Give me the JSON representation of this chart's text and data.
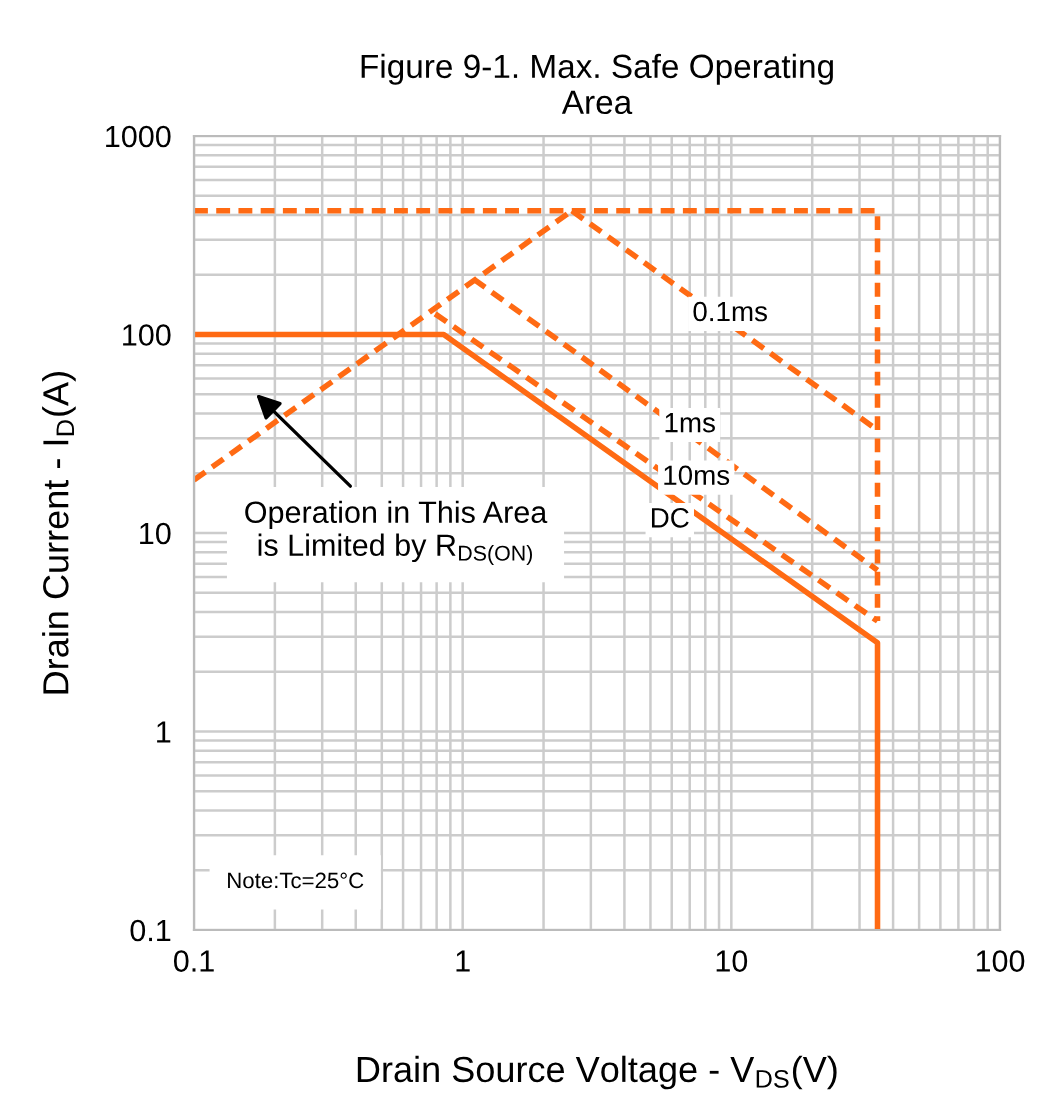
{
  "chart_data": {
    "type": "line",
    "title": "Figure 9-1. Max. Safe Operating\nArea",
    "xlabel": "Drain Source Voltage - V$_{DS}$(V)",
    "ylabel": "Drain Current - I$_{D}$(A)",
    "log": "xy",
    "xlim": [
      0.1,
      100
    ],
    "ylim": [
      0.1,
      1000
    ],
    "xticks": [
      0.1,
      1,
      10,
      100
    ],
    "yticks": [
      0.1,
      1,
      10,
      100,
      1000
    ],
    "grid": true,
    "marker": "none",
    "series": [
      {
        "color": "#ff6a13",
        "line_style": "dashed",
        "x": [
          0.1,
          2.55
        ],
        "values": [
          18.5,
          420
        ]
      },
      {
        "color": "#ff6a13",
        "line_style": "dashed",
        "x": [
          0.1,
          35,
          35
        ],
        "values": [
          420,
          420,
          3.6
        ]
      },
      {
        "color": "#ff6a13",
        "line_style": "dashed",
        "x": [
          2.55,
          35
        ],
        "values": [
          420,
          33
        ]
      },
      {
        "color": "#ff6a13",
        "line_style": "dashed",
        "x": [
          1.1,
          35
        ],
        "values": [
          190,
          6.5
        ]
      },
      {
        "color": "#ff6a13",
        "line_style": "dashed",
        "x": [
          0.79,
          35
        ],
        "values": [
          127,
          3.6
        ]
      },
      {
        "color": "#ff6a13",
        "line_style": "solid",
        "x": [
          0.1,
          0.85,
          35,
          35
        ],
        "values": [
          100,
          100,
          2.8,
          0.1
        ]
      }
    ],
    "annotations": [
      {
        "text": "0.1ms",
        "x": 9.9,
        "y": 127
      },
      {
        "text": "1ms",
        "x": 7.0,
        "y": 35
      },
      {
        "text": "10ms",
        "x": 7.4,
        "y": 19
      },
      {
        "text": "DC",
        "x": 5.9,
        "y": 11.6
      },
      "Operation in This Area\nis Limited by R$_{DS(ON)}$",
      "Note:Tc=25°C"
    ]
  }
}
